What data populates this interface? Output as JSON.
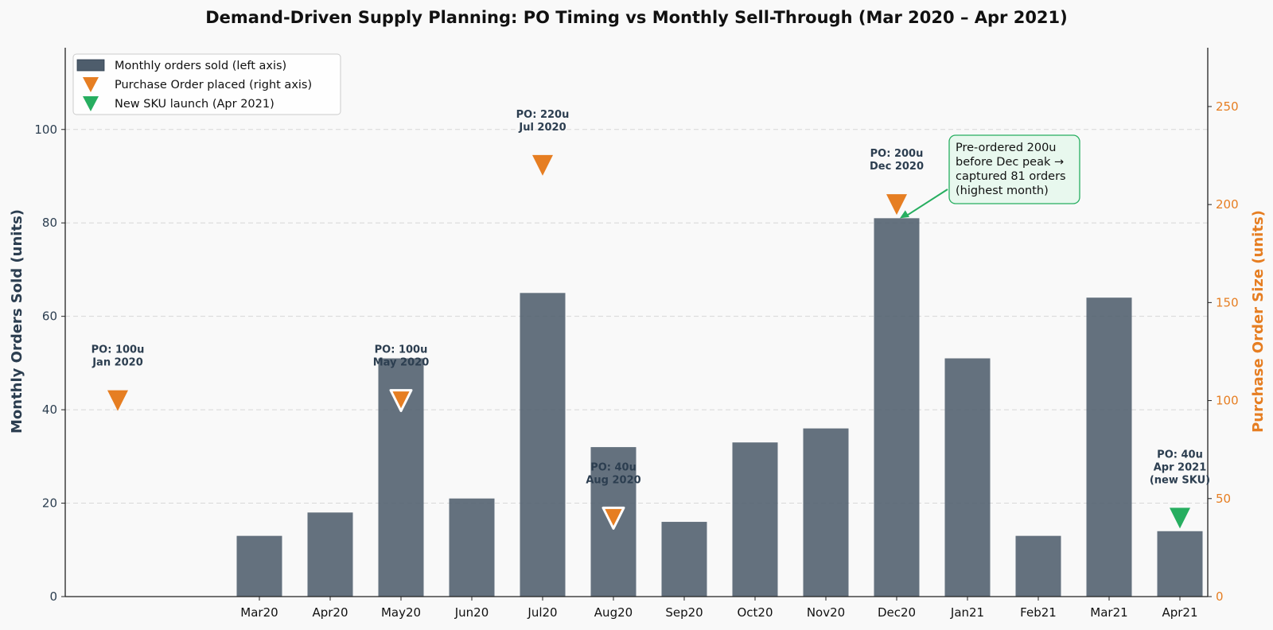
{
  "chart_data": {
    "type": "bar",
    "title": "Demand-Driven Supply Planning: PO Timing vs Monthly Sell-Through (Mar 2020 – Apr 2021)",
    "ylabel": "Monthly Orders Sold (units)",
    "y2label": "Purchase Order Size (units)",
    "ylim": [
      0,
      117.5
    ],
    "y2lim": [
      0,
      280
    ],
    "yticks": [
      0,
      20,
      40,
      60,
      80,
      100
    ],
    "y2ticks": [
      0,
      50,
      100,
      150,
      200,
      250
    ],
    "grid": true,
    "legend_position": "top-left",
    "categories": [
      "Mar20",
      "Apr20",
      "May20",
      "Jun20",
      "Jul20",
      "Aug20",
      "Sep20",
      "Oct20",
      "Nov20",
      "Dec20",
      "Jan21",
      "Feb21",
      "Mar21",
      "Apr21"
    ],
    "series": [
      {
        "name": "Monthly orders sold (left axis)",
        "type": "bar",
        "color": "#4e5d6c",
        "values": [
          13,
          18,
          51,
          21,
          65,
          32,
          16,
          33,
          36,
          81,
          51,
          13,
          64,
          14
        ]
      }
    ],
    "purchase_orders": [
      {
        "category": "Jan20",
        "size": 100,
        "label_lines": [
          "PO: 100u",
          "Jan 2020"
        ],
        "color": "#e67e22",
        "outlined": false
      },
      {
        "category": "May20",
        "size": 100,
        "label_lines": [
          "PO: 100u",
          "May 2020"
        ],
        "color": "#e67e22",
        "outlined": true
      },
      {
        "category": "Jul20",
        "size": 220,
        "label_lines": [
          "PO: 220u",
          "Jul 2020"
        ],
        "color": "#e67e22",
        "outlined": false
      },
      {
        "category": "Aug20",
        "size": 40,
        "label_lines": [
          "PO: 40u",
          "Aug 2020"
        ],
        "color": "#e67e22",
        "outlined": true
      },
      {
        "category": "Dec20",
        "size": 200,
        "label_lines": [
          "PO: 200u",
          "Dec 2020"
        ],
        "color": "#e67e22",
        "outlined": false
      },
      {
        "category": "Apr21",
        "size": 40,
        "label_lines": [
          "PO: 40u",
          "Apr 2021",
          "(new SKU)"
        ],
        "color": "#27ae60",
        "outlined": false
      }
    ],
    "legend": [
      {
        "label": "Monthly orders sold (left axis)",
        "kind": "bar",
        "color": "#4e5d6c"
      },
      {
        "label": "Purchase Order placed (right axis)",
        "kind": "triangle",
        "color": "#e67e22"
      },
      {
        "label": "New SKU launch (Apr 2021)",
        "kind": "triangle",
        "color": "#27ae60"
      }
    ],
    "annotation": {
      "lines": [
        "Pre-ordered 200u",
        "before Dec peak →",
        "captured 81 orders",
        "(highest month)"
      ],
      "target_category": "Dec20",
      "target_value": 81,
      "color": "#27ae60",
      "fill": "#e8f8ee"
    },
    "colors": {
      "left_axis": "#2c3e50",
      "right_axis": "#e67e22",
      "bar": "#4e5d6c",
      "po": "#e67e22",
      "sku": "#27ae60"
    }
  }
}
